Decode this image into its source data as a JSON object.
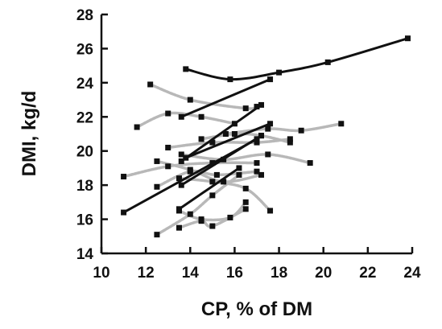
{
  "chart_data": {
    "type": "line",
    "title": "",
    "xlabel": "CP, % of DM",
    "ylabel": "DMI, kg/d",
    "xlim": [
      10,
      24
    ],
    "ylim": [
      14,
      28
    ],
    "xticks": [
      10,
      12,
      14,
      16,
      18,
      20,
      22,
      24
    ],
    "yticks": [
      14,
      16,
      18,
      20,
      22,
      24,
      26,
      28
    ],
    "grid": false,
    "legend": "none",
    "colors": {
      "significant": "#111111",
      "nonsignificant": "#b8b8b8",
      "axis": "#111111"
    },
    "series": [
      {
        "style": "significant",
        "smooth": true,
        "points": [
          [
            13.8,
            24.8
          ],
          [
            15.8,
            24.2
          ],
          [
            18.0,
            24.6
          ],
          [
            20.2,
            25.2
          ],
          [
            23.8,
            26.6
          ]
        ]
      },
      {
        "style": "significant",
        "points": [
          [
            13.6,
            22.0
          ],
          [
            17.6,
            24.2
          ]
        ]
      },
      {
        "style": "significant",
        "points": [
          [
            13.6,
            19.4
          ],
          [
            17.2,
            22.7
          ]
        ]
      },
      {
        "style": "significant",
        "points": [
          [
            13.8,
            19.6
          ],
          [
            17.6,
            21.6
          ]
        ]
      },
      {
        "style": "significant",
        "points": [
          [
            11.0,
            16.4
          ],
          [
            17.0,
            20.7
          ]
        ]
      },
      {
        "style": "significant",
        "points": [
          [
            13.6,
            18.0
          ],
          [
            17.2,
            20.9
          ]
        ]
      },
      {
        "style": "significant",
        "points": [
          [
            13.5,
            16.6
          ],
          [
            16.2,
            19.0
          ]
        ]
      },
      {
        "style": "nonsignificant",
        "smooth": true,
        "points": [
          [
            12.2,
            23.9
          ],
          [
            14.0,
            23.0
          ],
          [
            16.5,
            22.5
          ],
          [
            17.0,
            22.6
          ]
        ]
      },
      {
        "style": "nonsignificant",
        "smooth": true,
        "points": [
          [
            11.6,
            21.4
          ],
          [
            13.0,
            22.2
          ],
          [
            14.5,
            22.0
          ],
          [
            16.0,
            21.6
          ]
        ]
      },
      {
        "style": "nonsignificant",
        "smooth": true,
        "points": [
          [
            15.6,
            21.0
          ],
          [
            17.5,
            21.3
          ],
          [
            19.0,
            21.2
          ],
          [
            20.8,
            21.6
          ]
        ]
      },
      {
        "style": "nonsignificant",
        "smooth": true,
        "points": [
          [
            14.5,
            20.7
          ],
          [
            16.0,
            21.0
          ],
          [
            17.2,
            20.9
          ],
          [
            18.5,
            20.5
          ]
        ]
      },
      {
        "style": "nonsignificant",
        "smooth": true,
        "points": [
          [
            13.0,
            20.2
          ],
          [
            15.0,
            20.5
          ],
          [
            17.0,
            20.5
          ],
          [
            18.5,
            20.7
          ]
        ]
      },
      {
        "style": "nonsignificant",
        "smooth": true,
        "points": [
          [
            11.0,
            18.5
          ],
          [
            13.0,
            19.1
          ],
          [
            15.0,
            19.3
          ],
          [
            17.0,
            19.3
          ]
        ]
      },
      {
        "style": "nonsignificant",
        "smooth": true,
        "points": [
          [
            13.6,
            19.8
          ],
          [
            15.5,
            19.5
          ],
          [
            17.5,
            19.8
          ],
          [
            19.4,
            19.3
          ]
        ]
      },
      {
        "style": "nonsignificant",
        "smooth": true,
        "points": [
          [
            12.5,
            19.4
          ],
          [
            14.0,
            18.9
          ],
          [
            15.5,
            18.2
          ],
          [
            17.2,
            18.6
          ]
        ]
      },
      {
        "style": "nonsignificant",
        "smooth": true,
        "points": [
          [
            12.5,
            17.9
          ],
          [
            14.0,
            18.8
          ],
          [
            15.2,
            18.6
          ],
          [
            17.0,
            18.8
          ]
        ]
      },
      {
        "style": "nonsignificant",
        "smooth": true,
        "points": [
          [
            13.5,
            18.4
          ],
          [
            15.0,
            18.2
          ],
          [
            16.5,
            17.8
          ],
          [
            17.6,
            16.5
          ]
        ]
      },
      {
        "style": "nonsignificant",
        "smooth": true,
        "points": [
          [
            13.5,
            16.5
          ],
          [
            14.5,
            16.0
          ],
          [
            15.8,
            16.1
          ],
          [
            16.5,
            17.0
          ]
        ]
      },
      {
        "style": "nonsignificant",
        "smooth": true,
        "points": [
          [
            12.5,
            15.1
          ],
          [
            14.0,
            16.3
          ],
          [
            15.0,
            17.4
          ],
          [
            16.2,
            18.6
          ]
        ]
      },
      {
        "style": "nonsignificant",
        "smooth": true,
        "points": [
          [
            13.5,
            15.5
          ],
          [
            14.5,
            15.9
          ],
          [
            15.0,
            15.6
          ],
          [
            16.5,
            16.6
          ]
        ]
      }
    ]
  }
}
